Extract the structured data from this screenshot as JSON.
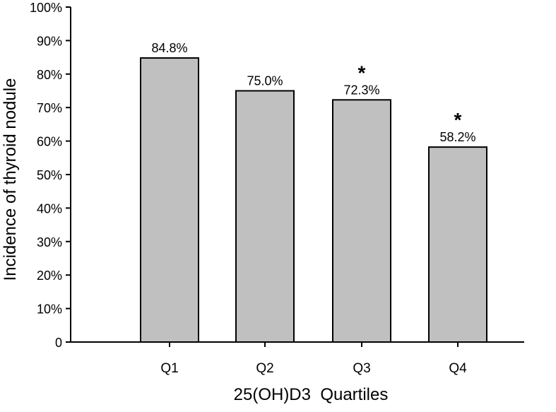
{
  "chart_data": {
    "type": "bar",
    "title": "",
    "xlabel": "25(OH)D3  Quartiles",
    "ylabel": "Incidence of thyroid nodule",
    "categories": [
      "Q1",
      "Q2",
      "Q3",
      "Q4"
    ],
    "values": [
      84.8,
      75.0,
      72.3,
      58.2
    ],
    "data_labels": [
      "84.8%",
      "75.0%",
      "72.3%",
      "58.2%"
    ],
    "significance_markers": [
      "",
      "",
      "*",
      "*"
    ],
    "yticks": [
      0,
      10,
      20,
      30,
      40,
      50,
      60,
      70,
      80,
      90,
      100
    ],
    "ytick_labels": [
      "0",
      "10%",
      "20%",
      "30%",
      "40%",
      "50%",
      "60%",
      "70%",
      "80%",
      "90%",
      "100%"
    ],
    "ylim": [
      0,
      100
    ],
    "grid": false,
    "legend": "none",
    "colors": {
      "bar_fill": "#c0c0c0",
      "bar_stroke": "#000000",
      "axis": "#000000"
    }
  }
}
